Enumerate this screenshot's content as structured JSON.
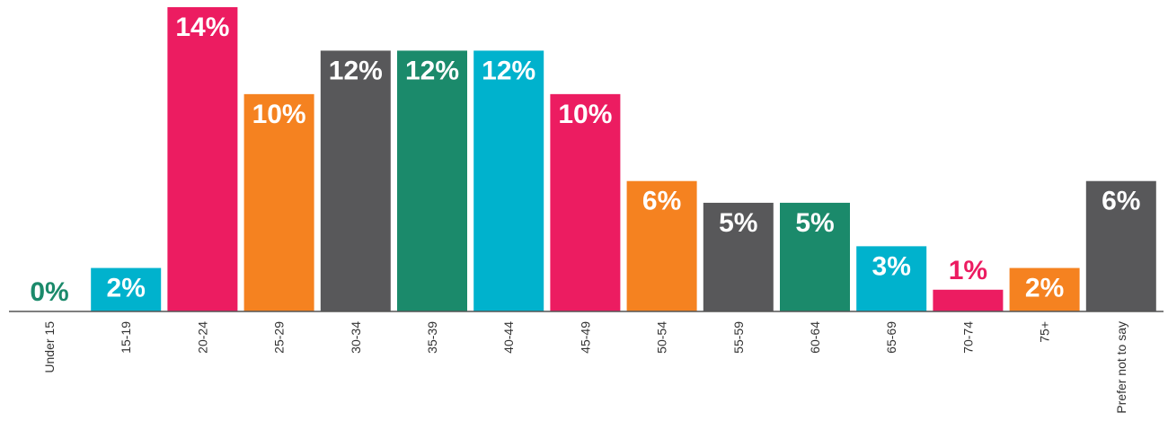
{
  "chart_data": {
    "type": "bar",
    "categories": [
      "Under 15",
      "15-19",
      "20-24",
      "25-29",
      "30-34",
      "35-39",
      "40-44",
      "45-49",
      "50-54",
      "55-59",
      "60-64",
      "65-69",
      "70-74",
      "75+",
      "Prefer not to say"
    ],
    "values": [
      0,
      2,
      14,
      10,
      12,
      12,
      12,
      10,
      6,
      5,
      5,
      3,
      1,
      2,
      6
    ],
    "value_labels": [
      "0%",
      "2%",
      "14%",
      "10%",
      "12%",
      "12%",
      "12%",
      "10%",
      "6%",
      "5%",
      "5%",
      "3%",
      "1%",
      "2%",
      "6%"
    ],
    "colors": [
      "#1b8a6b",
      "#00b2cd",
      "#ec1c61",
      "#f58220",
      "#58585a",
      "#1b8a6b",
      "#00b2cd",
      "#ec1c61",
      "#f58220",
      "#58585a",
      "#1b8a6b",
      "#00b2cd",
      "#ec1c61",
      "#f58220",
      "#58585a"
    ]
  }
}
